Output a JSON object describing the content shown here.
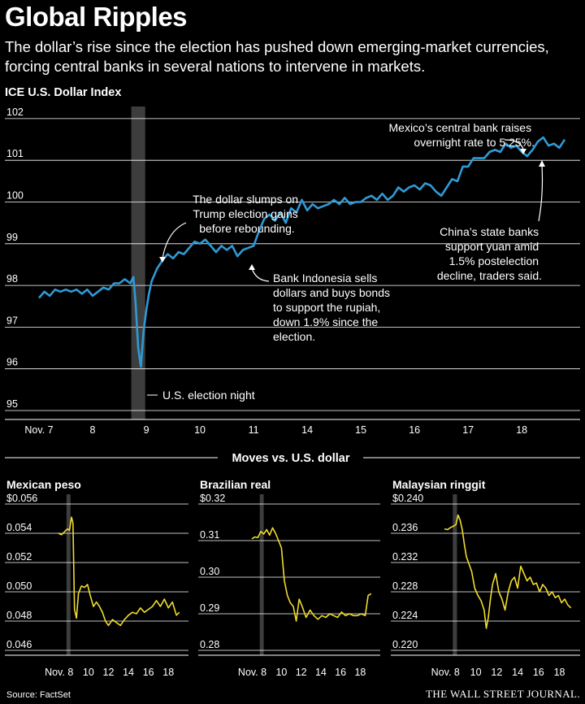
{
  "header": {
    "title": "Global Ripples",
    "subtitle": "The dollar’s rise since the election has pushed down emerging-market currencies, forcing central banks in several nations to intervene in markets."
  },
  "footer": {
    "source": "Source: FactSet",
    "publisher": "THE WALL STREET JOURNAL."
  },
  "section_title": "Moves vs. U.S. dollar",
  "colors": {
    "main_line": "#2f9ad6",
    "small_line": "#f0dc2e",
    "highlight_band": "#3d3d3d",
    "grid": "#ffffff"
  },
  "chart_data": [
    {
      "type": "line",
      "title": "ICE U.S. Dollar Index",
      "x_tick_labels": [
        "Nov. 7",
        "8",
        "9",
        "10",
        "11",
        "14",
        "15",
        "16",
        "17",
        "18"
      ],
      "ylim": [
        95,
        102
      ],
      "y_ticks": [
        95,
        96,
        97,
        98,
        99,
        100,
        101,
        102
      ],
      "grid": true,
      "highlight": {
        "label": "U.S. election night",
        "x_range": [
          1.72,
          1.98
        ]
      },
      "series": [
        {
          "x": [
            0.0,
            0.1,
            0.2,
            0.3,
            0.4,
            0.5,
            0.6,
            0.7,
            0.8,
            0.9,
            1.0,
            1.1,
            1.2,
            1.3,
            1.4,
            1.5,
            1.6,
            1.7,
            1.76,
            1.8,
            1.85,
            1.9,
            1.95,
            2.0,
            2.05,
            2.1,
            2.2,
            2.3,
            2.4,
            2.5,
            2.6,
            2.7,
            2.8,
            2.9,
            3.0,
            3.1,
            3.2,
            3.3,
            3.4,
            3.5,
            3.6,
            3.7,
            3.8,
            3.9,
            4.0,
            4.1,
            4.2,
            4.3,
            4.4,
            4.5,
            4.6,
            4.7,
            4.8,
            4.9,
            5.0,
            5.1,
            5.2,
            5.3,
            5.4,
            5.5,
            5.6,
            5.7,
            5.8,
            5.9,
            6.0,
            6.1,
            6.2,
            6.3,
            6.4,
            6.5,
            6.6,
            6.7,
            6.8,
            6.9,
            7.0,
            7.1,
            7.2,
            7.3,
            7.4,
            7.5,
            7.6,
            7.7,
            7.8,
            7.9,
            8.0,
            8.1,
            8.2,
            8.3,
            8.4,
            8.5,
            8.6,
            8.7,
            8.8,
            8.9,
            9.0,
            9.1,
            9.2,
            9.3,
            9.4,
            9.5,
            9.6,
            9.7,
            9.8
          ],
          "values": [
            97.7,
            97.85,
            97.75,
            97.9,
            97.85,
            97.9,
            97.85,
            97.9,
            97.8,
            97.9,
            97.75,
            97.85,
            97.95,
            97.9,
            98.05,
            98.05,
            98.15,
            98.05,
            98.2,
            97.6,
            96.5,
            96.05,
            96.9,
            97.4,
            97.8,
            98.1,
            98.4,
            98.6,
            98.75,
            98.65,
            98.8,
            98.75,
            98.9,
            99.05,
            99.0,
            99.1,
            98.95,
            98.8,
            98.95,
            98.85,
            98.95,
            98.7,
            98.85,
            98.9,
            98.95,
            99.3,
            99.6,
            99.7,
            99.55,
            99.75,
            99.5,
            99.85,
            99.75,
            100.05,
            99.8,
            99.95,
            99.85,
            99.9,
            99.95,
            100.05,
            99.95,
            100.1,
            99.95,
            100.0,
            100.0,
            100.1,
            100.15,
            100.05,
            100.2,
            100.05,
            100.15,
            100.35,
            100.25,
            100.35,
            100.4,
            100.3,
            100.45,
            100.4,
            100.25,
            100.15,
            100.35,
            100.55,
            100.5,
            100.85,
            100.85,
            101.05,
            101.05,
            101.05,
            101.2,
            101.25,
            101.2,
            101.4,
            101.3,
            101.35,
            101.2,
            101.1,
            101.25,
            101.45,
            101.55,
            101.35,
            101.4,
            101.3,
            101.5
          ]
        }
      ],
      "annotations": [
        "The dollar slumps on Trump election gains before rebounding.",
        "Bank Indonesia sells dollars and buys bonds to support the rupiah, down 1.9% since the election.",
        "Mexico’s central bank raises overnight rate to 5.25%.",
        "China’s state banks support yuan amid 1.5% postelection decline, traders said."
      ]
    },
    {
      "type": "line",
      "title": "Mexican peso",
      "x_tick_labels": [
        "Nov. 8",
        "10",
        "12",
        "14",
        "16",
        "18"
      ],
      "ylim": [
        0.046,
        0.056
      ],
      "y_tick_labels": [
        "$0.056",
        "0.054",
        "0.052",
        "0.050",
        "0.048",
        "0.046"
      ],
      "y_ticks": [
        0.056,
        0.054,
        0.052,
        0.05,
        0.048,
        0.046
      ],
      "highlight": {
        "x_range": [
          7.8,
          8.2
        ]
      },
      "series": [
        {
          "x": [
            7.0,
            7.3,
            7.6,
            7.9,
            8.1,
            8.3,
            8.45,
            8.6,
            8.8,
            9.0,
            9.3,
            9.6,
            9.9,
            10.2,
            10.5,
            10.8,
            11.1,
            11.4,
            11.7,
            12.0,
            12.4,
            12.8,
            13.2,
            13.6,
            14.0,
            14.4,
            14.8,
            15.2,
            15.6,
            16.0,
            16.4,
            16.8,
            17.2,
            17.6,
            18.0,
            18.4,
            18.8,
            19.1
          ],
          "values": [
            0.054,
            0.0539,
            0.0541,
            0.0543,
            0.0542,
            0.0551,
            0.0547,
            0.0488,
            0.0482,
            0.0499,
            0.0504,
            0.0503,
            0.0505,
            0.0497,
            0.049,
            0.0493,
            0.049,
            0.0486,
            0.048,
            0.0477,
            0.0481,
            0.0479,
            0.0477,
            0.0481,
            0.0484,
            0.0486,
            0.0485,
            0.0489,
            0.0486,
            0.0488,
            0.049,
            0.0494,
            0.049,
            0.0495,
            0.0489,
            0.0493,
            0.0484,
            0.0486
          ]
        }
      ]
    },
    {
      "type": "line",
      "title": "Brazilian real",
      "x_tick_labels": [
        "Nov. 8",
        "10",
        "12",
        "14",
        "16",
        "18"
      ],
      "ylim": [
        0.28,
        0.32
      ],
      "y_tick_labels": [
        "$0.32",
        "0.31",
        "0.30",
        "0.29",
        "0.28"
      ],
      "y_ticks": [
        0.32,
        0.31,
        0.3,
        0.29,
        0.28
      ],
      "highlight": {
        "x_range": [
          7.8,
          8.2
        ]
      },
      "series": [
        {
          "x": [
            7.0,
            7.3,
            7.6,
            7.9,
            8.2,
            8.5,
            8.8,
            9.1,
            9.4,
            9.7,
            10.0,
            10.3,
            10.6,
            10.9,
            11.2,
            11.5,
            11.8,
            12.1,
            12.5,
            12.9,
            13.3,
            13.7,
            14.1,
            14.5,
            14.9,
            15.3,
            15.7,
            16.1,
            16.5,
            16.9,
            17.3,
            17.7,
            18.1,
            18.5,
            18.8,
            19.1
          ],
          "values": [
            0.3105,
            0.311,
            0.3108,
            0.3125,
            0.3118,
            0.313,
            0.3115,
            0.3135,
            0.312,
            0.31,
            0.308,
            0.299,
            0.295,
            0.293,
            0.292,
            0.288,
            0.294,
            0.292,
            0.289,
            0.291,
            0.2895,
            0.2885,
            0.2895,
            0.289,
            0.29,
            0.2895,
            0.289,
            0.2905,
            0.2895,
            0.29,
            0.2895,
            0.2895,
            0.29,
            0.2895,
            0.295,
            0.2955
          ]
        }
      ]
    },
    {
      "type": "line",
      "title": "Malaysian ringgit",
      "x_tick_labels": [
        "Nov. 8",
        "10",
        "12",
        "14",
        "16",
        "18"
      ],
      "ylim": [
        0.22,
        0.24
      ],
      "y_tick_labels": [
        "$0.240",
        "0.236",
        "0.232",
        "0.228",
        "0.224",
        "0.220"
      ],
      "y_ticks": [
        0.24,
        0.236,
        0.232,
        0.228,
        0.224,
        0.22
      ],
      "highlight": {
        "x_range": [
          7.8,
          8.2
        ]
      },
      "series": [
        {
          "x": [
            7.0,
            7.3,
            7.6,
            7.9,
            8.1,
            8.3,
            8.5,
            8.7,
            8.9,
            9.1,
            9.3,
            9.6,
            9.9,
            10.2,
            10.5,
            10.8,
            11.0,
            11.2,
            11.4,
            11.6,
            11.9,
            12.2,
            12.5,
            12.8,
            13.1,
            13.4,
            13.7,
            14.0,
            14.3,
            14.6,
            14.9,
            15.2,
            15.5,
            15.8,
            16.1,
            16.4,
            16.7,
            17.0,
            17.3,
            17.6,
            17.9,
            18.2,
            18.5,
            18.8,
            19.1
          ],
          "values": [
            0.2366,
            0.2365,
            0.2368,
            0.237,
            0.2372,
            0.2385,
            0.2378,
            0.2365,
            0.2345,
            0.2328,
            0.232,
            0.2308,
            0.2285,
            0.2275,
            0.2268,
            0.2255,
            0.223,
            0.2245,
            0.227,
            0.229,
            0.2305,
            0.228,
            0.227,
            0.2255,
            0.228,
            0.2295,
            0.23,
            0.2285,
            0.2315,
            0.2305,
            0.2295,
            0.23,
            0.229,
            0.2292,
            0.228,
            0.229,
            0.2285,
            0.2275,
            0.228,
            0.2272,
            0.2275,
            0.2265,
            0.227,
            0.2262,
            0.2258
          ]
        }
      ]
    }
  ]
}
